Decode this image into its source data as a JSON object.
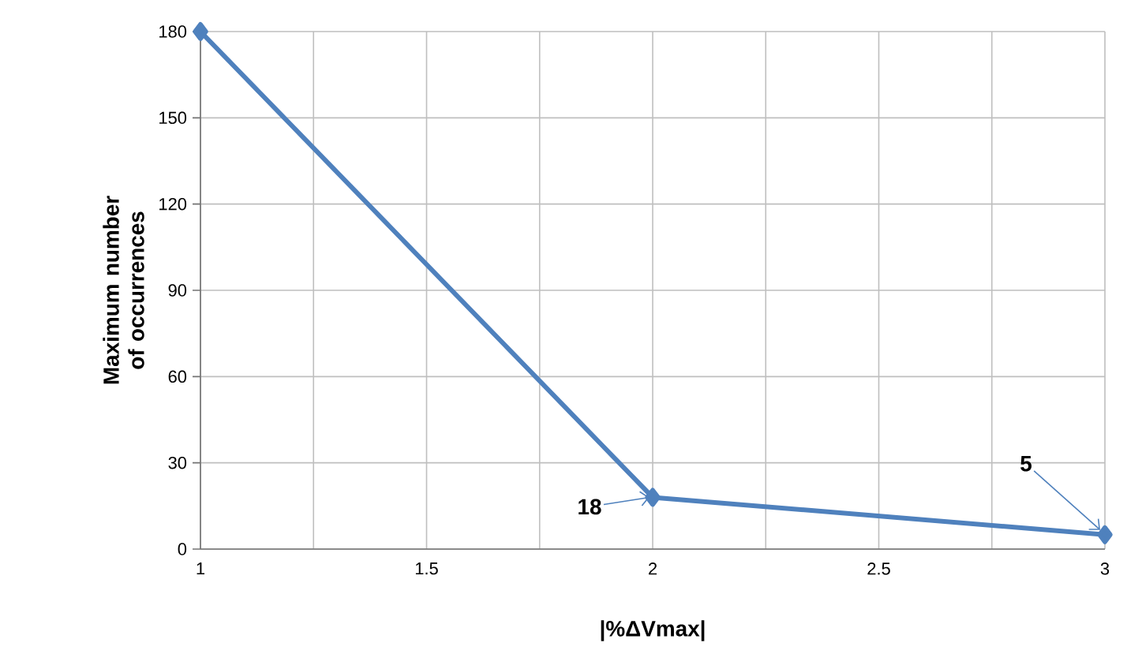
{
  "chart_data": {
    "type": "line",
    "xlabel": "|%ΔVmax|",
    "ylabel": "Maximum number of occurrences",
    "x": [
      1,
      2,
      3
    ],
    "series": [
      {
        "color": "#4f81bd",
        "values": [
          180,
          18,
          5
        ]
      }
    ],
    "xlim": [
      1,
      3
    ],
    "xticks": [
      1,
      {
        "value": 1.25,
        "label": null
      },
      1.5,
      {
        "value": 1.75,
        "label": null
      },
      2,
      {
        "value": 2.25,
        "label": null
      },
      2.5,
      {
        "value": 2.75,
        "label": null
      },
      3
    ],
    "ylim": [
      0,
      180
    ],
    "yticks": [
      0,
      30,
      60,
      90,
      120,
      150,
      180
    ],
    "grid": true,
    "marker": "diamond",
    "line_style": "solid",
    "annotations": [
      {
        "text": "18",
        "x": 2,
        "y": 18
      },
      {
        "text": "5",
        "x": 3,
        "y": 5
      }
    ]
  }
}
